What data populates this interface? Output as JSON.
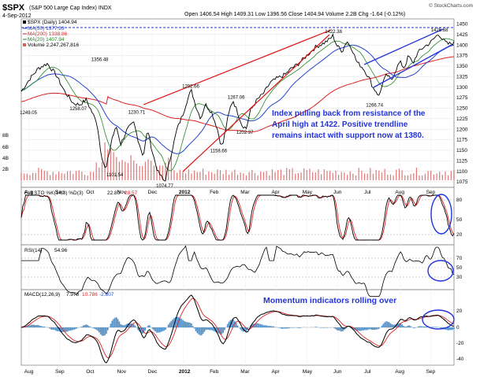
{
  "header": {
    "symbol": "$SPX",
    "description": "(S&P 500 Large Cap Index) INDX",
    "date": "4-Sep-2012",
    "ohlc": "Open 1406.54  High 1409.31  Low 1396.56  Close 1404.94  Volume 2.2B  Chg -1.64 (-0.12%)",
    "watermark": "© StockCharts.com"
  },
  "legend": {
    "price": "$SPX (Daily) 1404.94",
    "ma50": "MA(50) 1377.93",
    "ma200": "MA(200) 1338.86",
    "ma20": "MA(20) 1407.94",
    "volume": "Volume 2,247,267,816"
  },
  "colors": {
    "price": "#000000",
    "ma50": "#2244cc",
    "ma200": "#dd2222",
    "ma20": "#228822",
    "volume": "#d86060",
    "stoch_k": "#000000",
    "stoch_d": "#dd2222",
    "rsi": "#000000",
    "macd": "#000000",
    "signal": "#dd2222",
    "histogram": "#4f8fc8",
    "annotation": "#2233dd",
    "trendline": "#dd1111",
    "channel": "#2233dd"
  },
  "annotations": {
    "main": [
      "Index pulling back from resistance of the",
      "April high at 1422. Positive trendline",
      "remains intact with support now at 1380."
    ],
    "momentum": "Momentum indicators rolling over"
  },
  "indicators": {
    "stoch": {
      "label": "Full STO %K(14,3) %D(3)",
      "k": "22.80",
      "d": "28.57"
    },
    "rsi": {
      "label": "RSI(14)",
      "value": "54.96"
    },
    "macd": {
      "label": "MACD(12,26,9)",
      "macd": "7.978",
      "signal": "10.786",
      "hist": "-2.807"
    }
  },
  "chart_data": {
    "type": "line",
    "title": "$SPX (S&P 500 Large Cap Index) INDX — Daily",
    "x_labels": [
      "Aug",
      "Sep",
      "Oct",
      "Nov",
      "Dec",
      "2012",
      "Feb",
      "Mar",
      "Apr",
      "May",
      "Jun",
      "Jul",
      "Aug",
      "Sep"
    ],
    "y_ticks": [
      1075,
      1100,
      1125,
      1150,
      1175,
      1200,
      1225,
      1250,
      1275,
      1300,
      1325,
      1350,
      1375,
      1400,
      1425,
      1450
    ],
    "ylim": [
      1062,
      1462
    ],
    "volume_ticks": [
      "8B",
      "6B",
      "4B",
      "2B"
    ],
    "price_path": [
      [
        0,
        1290
      ],
      [
        0.02,
        1320
      ],
      [
        0.04,
        1345
      ],
      [
        0.06,
        1356
      ],
      [
        0.08,
        1330
      ],
      [
        0.1,
        1290
      ],
      [
        0.12,
        1262
      ],
      [
        0.135,
        1258
      ],
      [
        0.15,
        1270
      ],
      [
        0.16,
        1248
      ],
      [
        0.175,
        1215
      ],
      [
        0.185,
        1140
      ],
      [
        0.195,
        1101
      ],
      [
        0.21,
        1180
      ],
      [
        0.22,
        1205
      ],
      [
        0.23,
        1165
      ],
      [
        0.245,
        1200
      ],
      [
        0.26,
        1215
      ],
      [
        0.27,
        1175
      ],
      [
        0.282,
        1135
      ],
      [
        0.292,
        1200
      ],
      [
        0.302,
        1150
      ],
      [
        0.315,
        1100
      ],
      [
        0.325,
        1085
      ],
      [
        0.332,
        1075
      ],
      [
        0.345,
        1135
      ],
      [
        0.36,
        1200
      ],
      [
        0.375,
        1240
      ],
      [
        0.385,
        1275
      ],
      [
        0.393,
        1292
      ],
      [
        0.405,
        1250
      ],
      [
        0.415,
        1225
      ],
      [
        0.425,
        1260
      ],
      [
        0.44,
        1240
      ],
      [
        0.452,
        1205
      ],
      [
        0.46,
        1170
      ],
      [
        0.465,
        1158
      ],
      [
        0.475,
        1215
      ],
      [
        0.485,
        1260
      ],
      [
        0.49,
        1267
      ],
      [
        0.5,
        1240
      ],
      [
        0.51,
        1210
      ],
      [
        0.52,
        1202
      ],
      [
        0.53,
        1245
      ],
      [
        0.545,
        1270
      ],
      [
        0.56,
        1285
      ],
      [
        0.575,
        1310
      ],
      [
        0.59,
        1320
      ],
      [
        0.61,
        1330
      ],
      [
        0.625,
        1345
      ],
      [
        0.64,
        1355
      ],
      [
        0.66,
        1375
      ],
      [
        0.68,
        1395
      ],
      [
        0.7,
        1405
      ],
      [
        0.712,
        1413
      ],
      [
        0.72,
        1422
      ],
      [
        0.73,
        1398
      ],
      [
        0.742,
        1385
      ],
      [
        0.752,
        1410
      ],
      [
        0.765,
        1390
      ],
      [
        0.775,
        1360
      ],
      [
        0.79,
        1345
      ],
      [
        0.805,
        1320
      ],
      [
        0.812,
        1300
      ],
      [
        0.82,
        1290
      ],
      [
        0.827,
        1278
      ],
      [
        0.835,
        1310
      ],
      [
        0.845,
        1330
      ],
      [
        0.855,
        1315
      ],
      [
        0.865,
        1340
      ],
      [
        0.875,
        1360
      ],
      [
        0.885,
        1345
      ],
      [
        0.895,
        1375
      ],
      [
        0.905,
        1355
      ],
      [
        0.915,
        1380
      ],
      [
        0.93,
        1395
      ],
      [
        0.945,
        1405
      ],
      [
        0.958,
        1420
      ],
      [
        0.965,
        1426
      ],
      [
        0.975,
        1412
      ],
      [
        0.985,
        1402
      ],
      [
        1.0,
        1405
      ]
    ],
    "peak_labels": [
      {
        "t": 0.015,
        "v": 1249.05,
        "text": "1249.05"
      },
      {
        "t": 0.13,
        "v": 1258.07,
        "text": "1258.07"
      },
      {
        "t": 0.18,
        "v": 1356.48,
        "text": "1356.48"
      },
      {
        "t": 0.265,
        "v": 1230.71,
        "text": "1230.71"
      },
      {
        "t": 0.215,
        "v": 1101.54,
        "text": "1101.54"
      },
      {
        "t": 0.33,
        "v": 1074.77,
        "text": "1074.77"
      },
      {
        "t": 0.39,
        "v": 1292.66,
        "text": "1292.66"
      },
      {
        "t": 0.455,
        "v": 1158.66,
        "text": "1158.66"
      },
      {
        "t": 0.495,
        "v": 1267.06,
        "text": "1267.06"
      },
      {
        "t": 0.515,
        "v": 1202.37,
        "text": "1202.37"
      },
      {
        "t": 0.72,
        "v": 1422.38,
        "text": "1422.38"
      },
      {
        "t": 0.815,
        "v": 1266.74,
        "text": "1266.74"
      },
      {
        "t": 0.965,
        "v": 1426.68,
        "text": "1426.68"
      }
    ]
  }
}
